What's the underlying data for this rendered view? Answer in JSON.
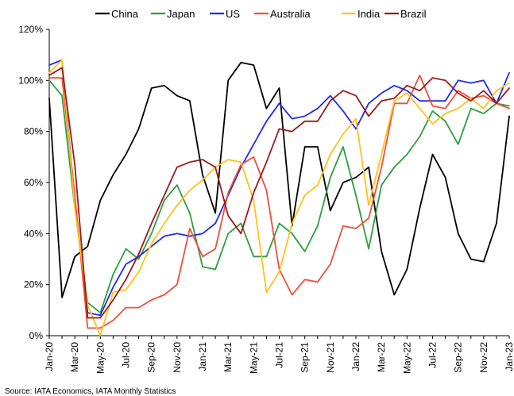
{
  "chart_data": {
    "type": "line",
    "title": "",
    "xlabel": "",
    "ylabel": "",
    "ylim": [
      0,
      120
    ],
    "yticks": [
      "0%",
      "20%",
      "40%",
      "60%",
      "80%",
      "100%",
      "120%"
    ],
    "x_tick_labels": [
      "Jan-20",
      "Mar-20",
      "May-20",
      "Jul-20",
      "Sep-20",
      "Nov-20",
      "Jan-21",
      "Mar-21",
      "May-21",
      "Jul-21",
      "Sep-21",
      "Nov-21",
      "Jan-22",
      "Mar-22",
      "May-22",
      "Jul-22",
      "Sep-22",
      "Nov-22",
      "Jan-23"
    ],
    "legend_position": "top",
    "grid": false,
    "source": "Source: IATA Economics, IATA Monthly Statistics",
    "series": [
      {
        "name": "China",
        "color": "#000000",
        "values": [
          93,
          15,
          31,
          35,
          53,
          63,
          71,
          81,
          97,
          98,
          94,
          92,
          63,
          48,
          100,
          107,
          106,
          89,
          97,
          43,
          74,
          74,
          49,
          60,
          62,
          66,
          33,
          16,
          26,
          50,
          71,
          62,
          40,
          30,
          29,
          44,
          86
        ]
      },
      {
        "name": "Japan",
        "color": "#2e9e3e",
        "values": [
          100,
          94,
          50,
          13,
          9,
          24,
          34,
          30,
          40,
          53,
          59,
          48,
          27,
          26,
          40,
          44,
          31,
          31,
          44,
          40,
          33,
          43,
          62,
          74,
          55,
          34,
          59,
          66,
          71,
          78,
          88,
          84,
          75,
          89,
          87,
          91,
          90
        ]
      },
      {
        "name": "US",
        "color": "#1f2be8",
        "values": [
          106,
          108,
          52,
          9,
          8,
          19,
          28,
          31,
          35,
          39,
          40,
          39,
          40,
          44,
          55,
          66,
          75,
          84,
          91,
          85,
          86,
          89,
          94,
          88,
          81,
          91,
          95,
          98,
          96,
          92,
          92,
          92,
          100,
          99,
          100,
          91,
          103
        ]
      },
      {
        "name": "Australia",
        "color": "#f04e3a",
        "values": [
          101,
          101,
          55,
          3,
          3,
          6,
          11,
          11,
          14,
          16,
          20,
          42,
          31,
          34,
          56,
          67,
          70,
          57,
          26,
          16,
          22,
          21,
          28,
          43,
          42,
          46,
          66,
          91,
          91,
          102,
          90,
          89,
          96,
          93,
          94,
          91,
          89
        ]
      },
      {
        "name": "India",
        "color": "#ffc21a",
        "values": [
          103,
          108,
          50,
          12,
          0,
          17,
          18,
          25,
          36,
          44,
          51,
          57,
          61,
          66,
          69,
          68,
          53,
          17,
          25,
          44,
          55,
          59,
          71,
          79,
          85,
          51,
          71,
          92,
          95,
          89,
          83,
          87,
          89,
          93,
          89,
          96,
          99
        ]
      },
      {
        "name": "Brazil",
        "color": "#9c1a1a",
        "values": [
          102,
          105,
          67,
          7,
          7,
          14,
          22,
          32,
          44,
          55,
          66,
          68,
          69,
          66,
          47,
          40,
          56,
          68,
          81,
          80,
          84,
          84,
          92,
          96,
          94,
          86,
          92,
          93,
          98,
          96,
          101,
          100,
          95,
          92,
          96,
          91,
          97
        ]
      }
    ]
  }
}
